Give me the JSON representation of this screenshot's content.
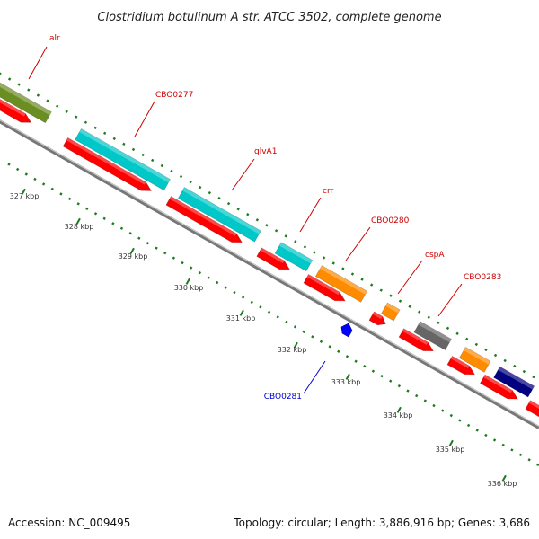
{
  "title": "Clostridium botulinum A str. ATCC 3502, complete genome",
  "footer": {
    "accession": "Accession: NC_009495",
    "summary": "Topology: circular; Length: 3,886,916 bp; Genes: 3,686"
  },
  "colors": {
    "backbone": "#8a8a8a",
    "ticks": "#1f7a1f",
    "label_forward": "#cc0000",
    "label_reverse": "#0000cc"
  },
  "ticks": [
    {
      "label": "327 kbp"
    },
    {
      "label": "328 kbp"
    },
    {
      "label": "329 kbp"
    },
    {
      "label": "330 kbp"
    },
    {
      "label": "331 kbp"
    },
    {
      "label": "332 kbp"
    },
    {
      "label": "333 kbp"
    },
    {
      "label": "334 kbp"
    },
    {
      "label": "335 kbp"
    },
    {
      "label": "336 kbp"
    }
  ],
  "genes": [
    {
      "name": "alr",
      "strand": "+",
      "color": "#6b8e23"
    },
    {
      "name": "CBO0277",
      "strand": "+",
      "color": "#00c8c8"
    },
    {
      "name": "glvA1",
      "strand": "+",
      "color": "#00c8c8"
    },
    {
      "name": "crr",
      "strand": "+",
      "color": "#00c8c8"
    },
    {
      "name": "CBO0280",
      "strand": "+",
      "color": "#ff8c00"
    },
    {
      "name": "cspA",
      "strand": "+",
      "color": "#ff8c00"
    },
    {
      "name": "CBO0283",
      "strand": "+",
      "color": "#666666"
    },
    {
      "name": "CBO0281",
      "strand": "-",
      "color": "#0000ff"
    }
  ],
  "extra_features": [
    {
      "color": "#ff8c00"
    },
    {
      "color": "#000080"
    },
    {
      "color": "#aaaaaa"
    }
  ],
  "cds_color": "#ff0000"
}
